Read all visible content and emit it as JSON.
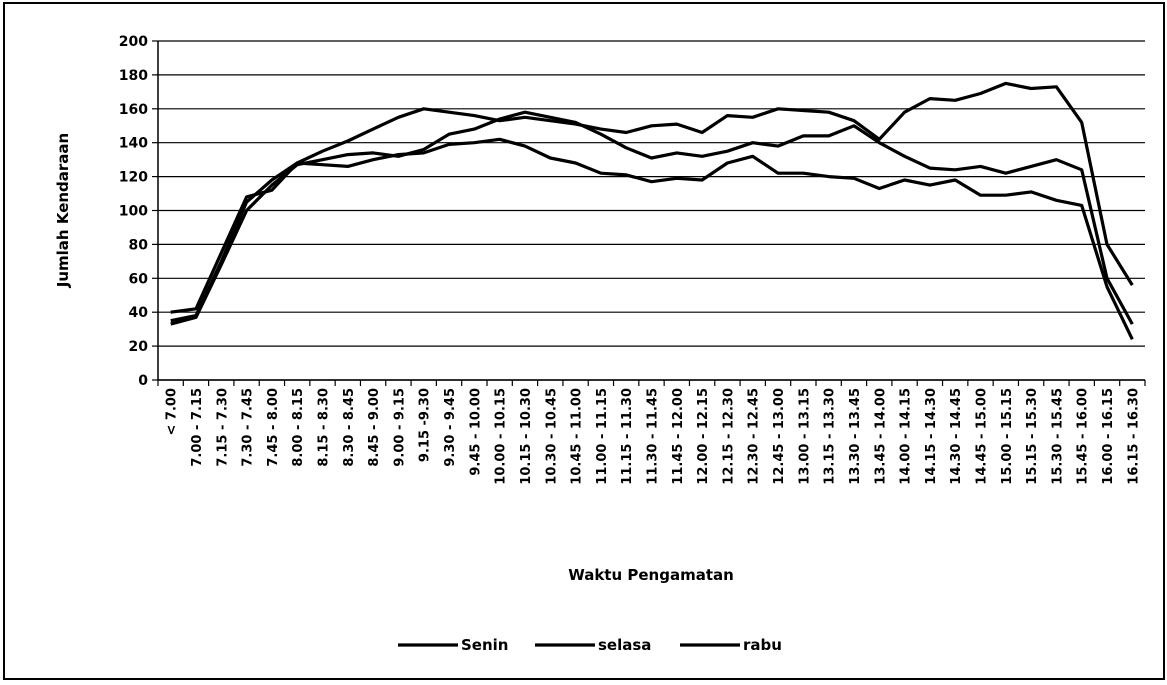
{
  "chart_data": {
    "type": "line",
    "y_label": "Jumlah Kendaraan",
    "x_label": "Waktu Pengamatan",
    "categories": [
      "< 7.00",
      "7.00 - 7.15",
      "7.15 - 7.30",
      "7.30 - 7.45",
      "7.45 - 8.00",
      "8.00 - 8.15",
      "8.15 - 8.30",
      "8.30 - 8.45",
      "8.45 - 9.00",
      "9.00 - 9.15",
      "9.15 -9.30",
      "9.30 - 9.45",
      "9.45 - 10.00",
      "10.00 - 10.15",
      "10.15 - 10.30",
      "10.30 - 10.45",
      "10.45 - 11.00",
      "11.00 - 11.15",
      "11.15 - 11.30",
      "11.30 - 11.45",
      "11.45 - 12.00",
      "12.00 - 12.15",
      "12.15 - 12.30",
      "12.30 - 12.45",
      "12.45 - 13.00",
      "13.00 - 13.15",
      "13.15 - 13.30",
      "13.30 - 13.45",
      "13.45 - 14.00",
      "14.00 - 14.15",
      "14.15 - 14.30",
      "14.30 - 14.45",
      "14.45 - 15.00",
      "15.00 - 15.15",
      "15.15 - 15.30",
      "15.30 - 15.45",
      "15.45 - 16.00",
      "16.00 - 16.15",
      "16.15 - 16.30"
    ],
    "series": [
      {
        "name": "Senin",
        "color": "#000000",
        "values": [
          40,
          42,
          75,
          108,
          112,
          128,
          127,
          126,
          130,
          133,
          134,
          139,
          140,
          142,
          138,
          131,
          128,
          122,
          121,
          117,
          119,
          118,
          128,
          132,
          122,
          122,
          120,
          119,
          113,
          118,
          115,
          118,
          109,
          109,
          111,
          106,
          103,
          55,
          24
        ]
      },
      {
        "name": "selasa",
        "color": "#000000",
        "values": [
          33,
          37,
          68,
          100,
          115,
          127,
          130,
          133,
          134,
          132,
          136,
          145,
          148,
          154,
          158,
          155,
          152,
          145,
          137,
          131,
          134,
          132,
          135,
          140,
          138,
          144,
          144,
          150,
          140,
          132,
          125,
          124,
          126,
          122,
          126,
          130,
          124,
          60,
          33
        ]
      },
      {
        "name": "rabu",
        "color": "#000000",
        "values": [
          35,
          38,
          70,
          105,
          118,
          128,
          135,
          141,
          148,
          155,
          160,
          158,
          156,
          153,
          155,
          153,
          151,
          148,
          146,
          150,
          151,
          146,
          156,
          155,
          160,
          159,
          158,
          153,
          142,
          158,
          166,
          165,
          169,
          175,
          172,
          173,
          152,
          80,
          56
        ]
      }
    ],
    "ylim": [
      0,
      200
    ],
    "yticks": [
      0,
      20,
      40,
      60,
      80,
      100,
      120,
      140,
      160,
      180,
      200
    ],
    "grid": true,
    "legend": "bottom"
  }
}
